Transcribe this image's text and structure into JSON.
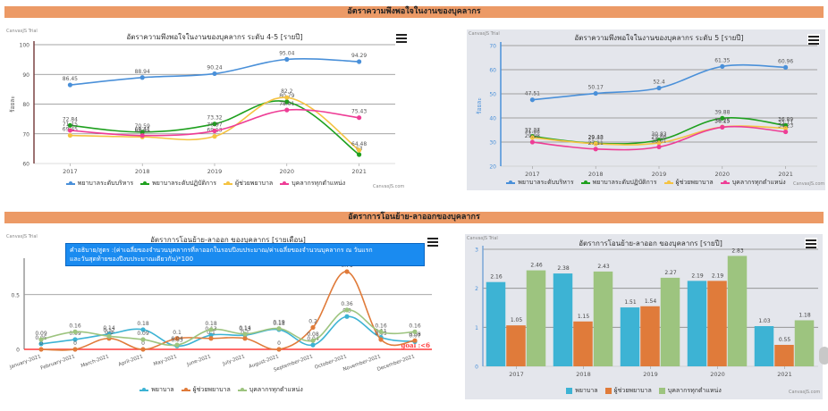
{
  "sections": {
    "satisfaction_title": "อัตราความพึงพอใจในงานของบุคลากร",
    "transfer_title": "อัตราการโอนย้าย-ลาออกของบุคลากร"
  },
  "common": {
    "trial_label": "CanvasJS Trial",
    "credit_label": "CanvasJS.com",
    "menu_icon": "hamburger-menu-icon"
  },
  "formula_text_line1": "คำอธิบาย/สูตร :(ค่าเฉลี่ยของจำนวนบุคลากรที่ลาออกในรอบปีงบประมาณ/ค่าเฉลี่ยของจำนวนบุคลากร ณ วันแรก",
  "formula_text_line2": "และวันสุดท้ายของปีงบประมาณเดียวกัน)*100",
  "colors": {
    "blue": "#4a90d9",
    "green": "#1ea01e",
    "yellow": "#f5c342",
    "pink": "#ee3d96",
    "cyan": "#3db3d4",
    "orange": "#e07b3a",
    "lightgreen": "#9dc47f",
    "goal": "#ff3b3b",
    "section": "#ec9a66"
  },
  "chart_data": [
    {
      "type": "line",
      "title": "อัตราความพึงพอใจในงานของบุคลากร ระดับ 4-5 [รายปี]",
      "xlabel": "",
      "ylabel": "ร้อยละ",
      "categories": [
        "2017",
        "2018",
        "2019",
        "2020",
        "2021"
      ],
      "ylim": [
        60,
        100
      ],
      "yticks": [
        60,
        70,
        80,
        90,
        100
      ],
      "grid": true,
      "legend": "bottom",
      "series": [
        {
          "name": "พยาบาลระดับบริหาร",
          "color": "#4a90d9",
          "values": [
            86.45,
            88.94,
            90.24,
            95.04,
            94.29
          ]
        },
        {
          "name": "พยาบาลระดับปฏิบัติการ",
          "color": "#1ea01e",
          "values": [
            72.84,
            70.59,
            73.32,
            80.79,
            63.0
          ]
        },
        {
          "name": "ผู้ช่วยพยาบาล",
          "color": "#f5c342",
          "values": [
            69.45,
            68.95,
            69.13,
            82.2,
            64.48
          ]
        },
        {
          "name": "บุคลากรทุกตำแหน่ง",
          "color": "#ee3d96",
          "values": [
            71.15,
            69.41,
            70.97,
            78.01,
            75.43
          ]
        }
      ]
    },
    {
      "type": "line",
      "title": "อัตราความพึงพอใจในงานของบุคลากร ระดับ 5 [รายปี]",
      "xlabel": "",
      "ylabel": "ร้อยละ",
      "categories": [
        "2017",
        "2018",
        "2019",
        "2020",
        "2021"
      ],
      "ylim": [
        20,
        70
      ],
      "yticks": [
        20,
        30,
        40,
        50,
        60,
        70
      ],
      "grid": true,
      "legend": "bottom",
      "series": [
        {
          "name": "พยาบาลระดับบริหาร",
          "color": "#4a90d9",
          "values": [
            47.51,
            50.17,
            52.4,
            61.35,
            60.96
          ]
        },
        {
          "name": "พยาบาลระดับปฏิบัติการ",
          "color": "#1ea01e",
          "values": [
            32.37,
            29.48,
            30.83,
            39.88,
            36.89
          ]
        },
        {
          "name": "ผู้ช่วยพยาบาล",
          "color": "#f5c342",
          "values": [
            31.88,
            29.33,
            29.66,
            36.25,
            35.71
          ]
        },
        {
          "name": "บุคลากรทุกตำแหน่ง",
          "color": "#ee3d96",
          "values": [
            29.98,
            27.11,
            28.01,
            36.15,
            34.23
          ]
        }
      ]
    },
    {
      "type": "line",
      "title": "อัตราการโอนย้าย-ลาออก ของบุคลากร [รายเดือน]",
      "xlabel": "",
      "ylabel": "",
      "categories": [
        "January-2021",
        "February-2021",
        "March-2021",
        "April-2021",
        "May-2021",
        "June-2021",
        "July-2021",
        "August-2021",
        "September-2021",
        "October-2021",
        "November-2021",
        "December-2021"
      ],
      "ylim": [
        0,
        0.8
      ],
      "yticks": [
        0,
        0.5
      ],
      "grid": true,
      "legend": "bottom",
      "goal_line": {
        "value": 0,
        "label": "goal :<6"
      },
      "series": [
        {
          "name": "พยาบาล",
          "color": "#3db3d4",
          "values": [
            0.05,
            0.09,
            0.14,
            0.18,
            0.03,
            0.13,
            0.13,
            0.18,
            0.04,
            0.3,
            0.11,
            0.07
          ]
        },
        {
          "name": "ผู้ช่วยพยาบาล",
          "color": "#e07b3a",
          "values": [
            0,
            0,
            0.1,
            0,
            0.1,
            0.1,
            0.1,
            0,
            0.2,
            0.71,
            0.09,
            0.08
          ]
        },
        {
          "name": "บุคลากรทุกตำแหน่ง",
          "color": "#9dc47f",
          "values": [
            0.09,
            0.16,
            0.12,
            0.09,
            0.04,
            0.18,
            0.14,
            0.19,
            0.08,
            0.36,
            0.16,
            0.16
          ]
        }
      ]
    },
    {
      "type": "bar",
      "title": "อัตราการโอนย้าย-ลาออก ของบุคลากร [รายปี]",
      "xlabel": "",
      "ylabel": "จำนวน",
      "categories": [
        "2017",
        "2018",
        "2019",
        "2020",
        "2021"
      ],
      "ylim": [
        0,
        3
      ],
      "yticks": [
        0,
        1,
        2,
        3
      ],
      "grid": true,
      "legend": "bottom",
      "series": [
        {
          "name": "พยาบาล",
          "color": "#3db3d4",
          "values": [
            2.16,
            2.38,
            1.51,
            2.19,
            1.03
          ]
        },
        {
          "name": "ผู้ช่วยพยาบาล",
          "color": "#e07b3a",
          "values": [
            1.05,
            1.15,
            1.54,
            2.19,
            0.55
          ]
        },
        {
          "name": "บุคลากรทุกตำแหน่ง",
          "color": "#9dc47f",
          "values": [
            2.46,
            2.43,
            2.27,
            2.83,
            1.18
          ]
        }
      ]
    }
  ]
}
